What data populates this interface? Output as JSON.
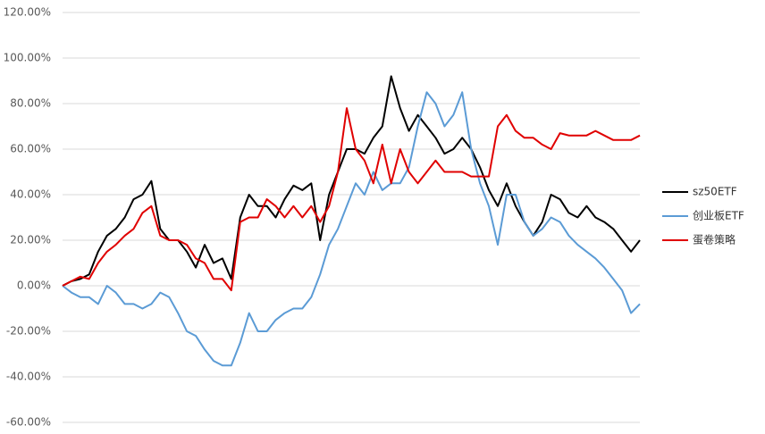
{
  "chart_data": {
    "type": "line",
    "ylim": [
      -60,
      120
    ],
    "yticks": [
      {
        "value": -60,
        "label": "-60.00%"
      },
      {
        "value": -40,
        "label": "-40.00%"
      },
      {
        "value": -20,
        "label": "-20.00%"
      },
      {
        "value": 0,
        "label": "0.00%"
      },
      {
        "value": 20,
        "label": "20.00%"
      },
      {
        "value": 40,
        "label": "40.00%"
      },
      {
        "value": 60,
        "label": "60.00%"
      },
      {
        "value": 80,
        "label": "80.00%"
      },
      {
        "value": 100,
        "label": "100.00%"
      },
      {
        "value": 120,
        "label": "120.00%"
      }
    ],
    "grid": true,
    "legend": "right",
    "series": [
      {
        "name": "sz50ETF",
        "color": "#000000",
        "values": [
          0,
          2,
          3,
          5,
          15,
          22,
          25,
          30,
          38,
          40,
          46,
          25,
          20,
          20,
          15,
          8,
          18,
          10,
          12,
          3,
          30,
          40,
          35,
          35,
          30,
          38,
          44,
          42,
          45,
          20,
          40,
          50,
          60,
          60,
          58,
          65,
          70,
          92,
          78,
          68,
          75,
          70,
          65,
          58,
          60,
          65,
          60,
          52,
          42,
          35,
          45,
          35,
          28,
          22,
          28,
          40,
          38,
          32,
          30,
          35,
          30,
          28,
          25,
          20,
          15,
          20
        ]
      },
      {
        "name": "创业板ETF",
        "color": "#5b9bd5",
        "values": [
          0,
          -3,
          -5,
          -5,
          -8,
          0,
          -3,
          -8,
          -8,
          -10,
          -8,
          -3,
          -5,
          -12,
          -20,
          -22,
          -28,
          -33,
          -35,
          -35,
          -25,
          -12,
          -20,
          -20,
          -15,
          -12,
          -10,
          -10,
          -5,
          5,
          18,
          25,
          35,
          45,
          40,
          50,
          42,
          45,
          45,
          52,
          70,
          85,
          80,
          70,
          75,
          85,
          60,
          45,
          35,
          18,
          40,
          40,
          28,
          22,
          25,
          30,
          28,
          22,
          18,
          15,
          12,
          8,
          3,
          -2,
          -12,
          -8
        ]
      },
      {
        "name": "蛋卷策略",
        "color": "#e00000",
        "values": [
          0,
          2,
          4,
          3,
          10,
          15,
          18,
          22,
          25,
          32,
          35,
          22,
          20,
          20,
          18,
          12,
          10,
          3,
          3,
          -2,
          28,
          30,
          30,
          38,
          35,
          30,
          35,
          30,
          35,
          28,
          35,
          50,
          78,
          60,
          55,
          45,
          62,
          45,
          60,
          50,
          45,
          50,
          55,
          50,
          50,
          50,
          48,
          48,
          48,
          70,
          75,
          68,
          65,
          65,
          62,
          60,
          67,
          66,
          66,
          66,
          68,
          66,
          64,
          64,
          64,
          66
        ]
      }
    ]
  }
}
